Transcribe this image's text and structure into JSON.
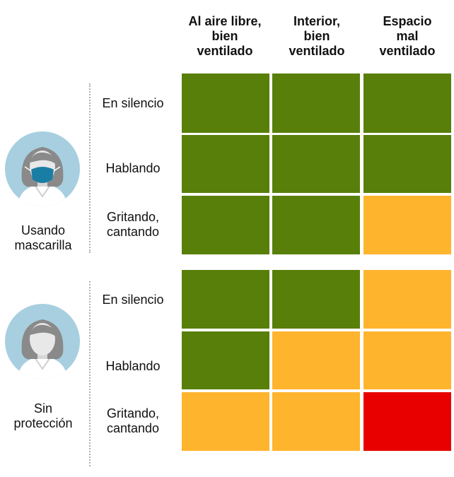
{
  "columns": [
    "Al aire libre, bien ventilado",
    "Interior, bien ventilado",
    "Espacio mal ventilado"
  ],
  "column_lines": [
    [
      "Al aire libre,",
      "bien",
      "ventilado"
    ],
    [
      "Interior,",
      "bien",
      "ventilado"
    ],
    [
      "Espacio",
      "mal",
      "ventilado"
    ]
  ],
  "colors": {
    "green": "#587f0a",
    "orange": "#ffb42e",
    "red": "#e80000",
    "avatar_bg": "#a7cfe0",
    "mask": "#1a7ea4"
  },
  "groups": [
    {
      "label_lines": [
        "Usando",
        "mascarilla"
      ],
      "icon": "masked-person-icon",
      "rows": [
        {
          "label": "En silencio",
          "levels": [
            "green",
            "green",
            "green"
          ]
        },
        {
          "label": "Hablando",
          "levels": [
            "green",
            "green",
            "green"
          ]
        },
        {
          "label": "Gritando, cantando",
          "label_lines": [
            "Gritando,",
            "cantando"
          ],
          "levels": [
            "green",
            "green",
            "orange"
          ]
        }
      ]
    },
    {
      "label_lines": [
        "Sin",
        "protección"
      ],
      "icon": "unprotected-person-icon",
      "rows": [
        {
          "label": "En silencio",
          "levels": [
            "green",
            "green",
            "orange"
          ]
        },
        {
          "label": "Hablando",
          "levels": [
            "green",
            "orange",
            "orange"
          ]
        },
        {
          "label": "Gritando, cantando",
          "label_lines": [
            "Gritando,",
            "cantando"
          ],
          "levels": [
            "orange",
            "orange",
            "red"
          ]
        }
      ]
    }
  ]
}
